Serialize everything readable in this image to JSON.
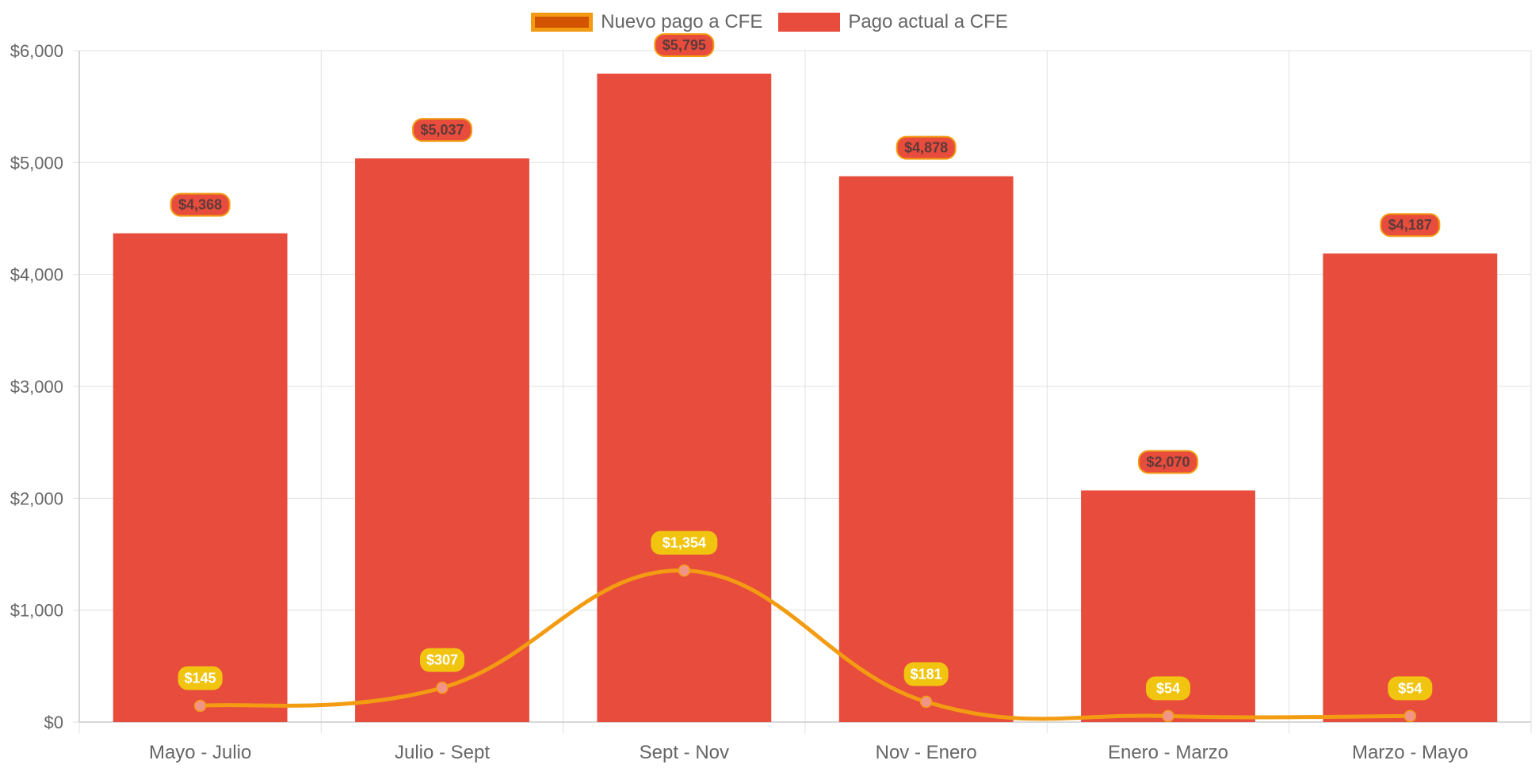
{
  "chart_data": {
    "type": "bar",
    "categories": [
      "Mayo - Julio",
      "Julio - Sept",
      "Sept - Nov",
      "Nov - Enero",
      "Enero - Marzo",
      "Marzo - Mayo"
    ],
    "series": [
      {
        "name": "Nuevo pago a CFE",
        "type": "line",
        "values": [
          145,
          307,
          1354,
          181,
          54,
          54
        ],
        "labels": [
          "$145",
          "$307",
          "$1,354",
          "$181",
          "$54",
          "$54"
        ],
        "color": "#f39c12",
        "fill_color": "#d35400",
        "point_color": "#f1948a",
        "label_bg": "#f1c40f",
        "label_text_color": "#ffffff"
      },
      {
        "name": "Pago actual a CFE",
        "type": "bar",
        "values": [
          4368,
          5037,
          5795,
          4878,
          2070,
          4187
        ],
        "labels": [
          "$4,368",
          "$5,037",
          "$5,795",
          "$4,878",
          "$2,070",
          "$4,187"
        ],
        "color": "#e74c3c",
        "label_border": "#f39c12",
        "label_text_color": "#5d3a3a"
      }
    ],
    "ylim": [
      0,
      6000
    ],
    "yticks": [
      "$0",
      "$1,000",
      "$2,000",
      "$3,000",
      "$4,000",
      "$5,000",
      "$6,000"
    ],
    "ytick_values": [
      0,
      1000,
      2000,
      3000,
      4000,
      5000,
      6000
    ],
    "grid": true,
    "legend_position": "top-center"
  }
}
